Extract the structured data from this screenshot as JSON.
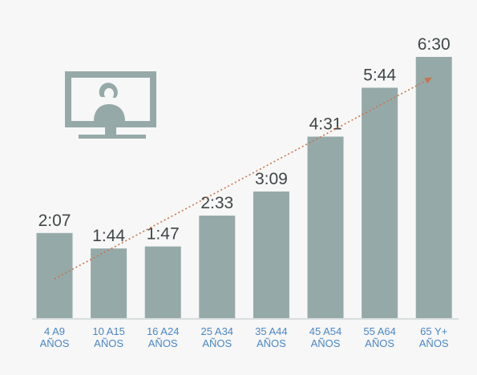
{
  "chart_data": {
    "type": "bar",
    "categories": [
      [
        "4 A9",
        "AÑOS"
      ],
      [
        "10 A15",
        "AÑOS"
      ],
      [
        "16 A24",
        "AÑOS"
      ],
      [
        "25 A34",
        "AÑOS"
      ],
      [
        "35 A44",
        "AÑOS"
      ],
      [
        "45 A54",
        "AÑOS"
      ],
      [
        "55 A64",
        "AÑOS"
      ],
      [
        "65 Y+",
        "AÑOS"
      ]
    ],
    "values_minutes": [
      127,
      104,
      107,
      153,
      189,
      271,
      344,
      390
    ],
    "value_labels": [
      "2:07",
      "1:44",
      "1:47",
      "2:33",
      "3:09",
      "4:31",
      "5:44",
      "6:30"
    ],
    "ylim": [
      0,
      390
    ],
    "grid": false,
    "legend": "none",
    "trend_arrow": true,
    "colors": {
      "bar": "#96a9a9",
      "trend": "#c8744a",
      "value_text": "#3f4647",
      "category_text": "#4a86c5",
      "baseline": "#b9c3c3",
      "icon": "#96a9a9"
    },
    "icon": "tv-person-icon"
  }
}
